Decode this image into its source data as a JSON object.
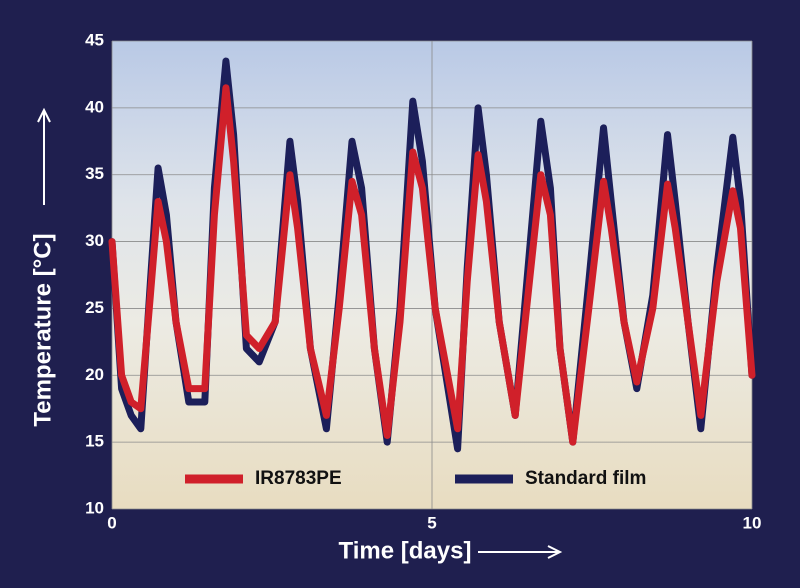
{
  "chart_data": {
    "type": "line",
    "x_label": "Time [days]",
    "y_label": "Temperature [°C]",
    "xlim": [
      0,
      10
    ],
    "xticks": [
      0,
      5,
      10
    ],
    "ylim": [
      10,
      45
    ],
    "yticks": [
      10,
      15,
      20,
      25,
      30,
      35,
      40,
      45
    ],
    "grid": true,
    "legend": "bottom",
    "x": [
      0,
      0.15,
      0.3,
      0.45,
      0.6,
      0.72,
      0.85,
      1.0,
      1.2,
      1.45,
      1.6,
      1.78,
      1.9,
      2.1,
      2.3,
      2.55,
      2.78,
      2.9,
      3.1,
      3.35,
      3.55,
      3.75,
      3.9,
      4.1,
      4.3,
      4.5,
      4.7,
      4.85,
      5.05,
      5.4,
      5.55,
      5.72,
      5.85,
      6.05,
      6.3,
      6.5,
      6.7,
      6.85,
      7.0,
      7.2,
      7.45,
      7.68,
      7.8,
      8.0,
      8.2,
      8.45,
      8.68,
      8.8,
      9.0,
      9.2,
      9.45,
      9.7,
      9.82,
      10.0
    ],
    "series": [
      {
        "name": "Standard film",
        "color": "#1c1f5a",
        "values": [
          30,
          19,
          17,
          16,
          27,
          35.5,
          32,
          24,
          18,
          18,
          34,
          43.5,
          38,
          22,
          21,
          24,
          37.5,
          33,
          22,
          16,
          26,
          37.5,
          34,
          22,
          15,
          25,
          40.5,
          36,
          25,
          14.5,
          28,
          40,
          35,
          24,
          17,
          28,
          39,
          34,
          22,
          15,
          27,
          38.5,
          33,
          24,
          19,
          26,
          38,
          33,
          24,
          16,
          28,
          37.8,
          33,
          20
        ]
      },
      {
        "name": "IR8783PE",
        "color": "#d0202a",
        "values": [
          30,
          20,
          18,
          17.5,
          26,
          33,
          30,
          24,
          19,
          19,
          32,
          41.5,
          36,
          23,
          22,
          24,
          35,
          31,
          22,
          17,
          25,
          34.5,
          32,
          22,
          15.5,
          24,
          36.7,
          34,
          25,
          16,
          27,
          36.5,
          33,
          24,
          17,
          26,
          35,
          32,
          22,
          15,
          25,
          34.5,
          31,
          24,
          19.5,
          25,
          34.3,
          31,
          24,
          17,
          27,
          33.8,
          31,
          20
        ]
      }
    ]
  }
}
